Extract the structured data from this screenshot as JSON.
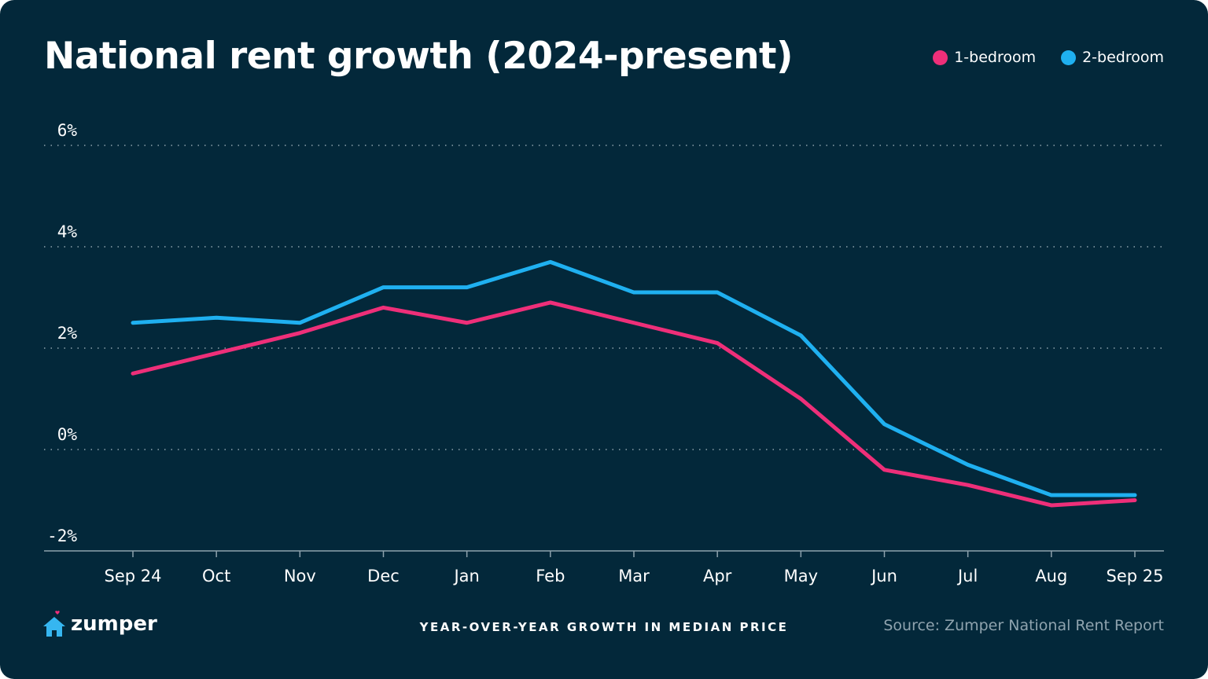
{
  "chart_data": {
    "type": "line",
    "title": "National rent growth (2024-present)",
    "xlabel": "YEAR-OVER-YEAR GROWTH IN MEDIAN PRICE",
    "ylabel": "",
    "categories": [
      "Sep 24",
      "Oct",
      "Nov",
      "Dec",
      "Jan",
      "Feb",
      "Mar",
      "Apr",
      "May",
      "Jun",
      "Jul",
      "Aug",
      "Sep 25"
    ],
    "yticks": [
      "6%",
      "4%",
      "2%",
      "0%",
      "-2%"
    ],
    "ytick_values": [
      6,
      4,
      2,
      0,
      -2
    ],
    "ylim": [
      -2,
      6
    ],
    "grid": "horizontal dotted",
    "legend": "top-right",
    "series": [
      {
        "name": "1-bedroom",
        "color": "#ee2f79",
        "values": [
          1.5,
          1.9,
          2.3,
          2.8,
          2.5,
          2.9,
          2.5,
          2.1,
          1.0,
          -0.4,
          -0.7,
          -1.1,
          -1.0
        ]
      },
      {
        "name": "2-bedroom",
        "color": "#1fb0f0",
        "values": [
          2.5,
          2.6,
          2.5,
          3.2,
          3.2,
          3.7,
          3.1,
          3.1,
          2.25,
          0.5,
          -0.3,
          -0.9,
          -0.9
        ]
      }
    ]
  },
  "brand": {
    "name": "zumper",
    "logo_icon": "house-with-heart-icon",
    "logo_color": "#36b6f0"
  },
  "source": "Source: Zumper National Rent Report",
  "background": "#03283a"
}
